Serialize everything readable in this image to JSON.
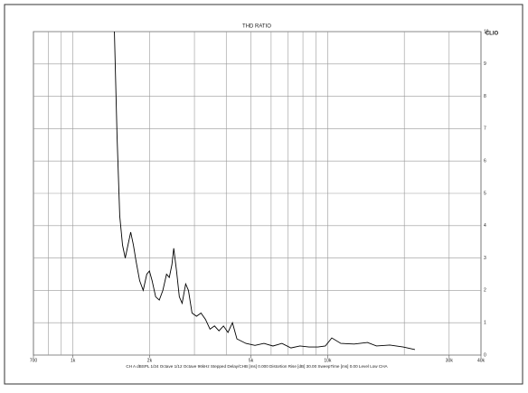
{
  "chart_data": {
    "type": "line",
    "title": "THD RATIO",
    "logo": "CLIO",
    "caption": "CH A   dBSPL   1/24 Octave   1/12 Octave   96kHz   Stepped   Delay/CHB [ms] 0.000   Distortion Rise [dB] 30.00   SweepTime [ms] 0.00   Level Low CHA",
    "x_log": true,
    "grid": true,
    "xlim": [
      700,
      40000
    ],
    "xticks": [
      700,
      {
        "value": 1000,
        "label": "1k"
      },
      {
        "value": 2000,
        "label": "2k"
      },
      {
        "value": 5000,
        "label": "5k"
      },
      {
        "value": 10000,
        "label": "10k"
      },
      {
        "value": 30000,
        "label": "30k"
      },
      {
        "value": 40000,
        "label": "40k"
      }
    ],
    "xgrid": [
      800,
      900,
      1000,
      2000,
      3000,
      4000,
      5000,
      6000,
      7000,
      8000,
      9000,
      10000,
      20000,
      30000
    ],
    "ylim": [
      0,
      10
    ],
    "yticks": [
      0,
      1,
      2,
      3,
      4,
      5,
      6,
      7,
      8,
      9,
      10
    ],
    "series": [
      {
        "name": "THD",
        "color": "#000000",
        "x": [
          1455,
          1490,
          1527,
          1566,
          1605,
          1645,
          1686,
          1728,
          1770,
          1828,
          1888,
          1950,
          1997,
          2046,
          2113,
          2183,
          2255,
          2331,
          2390,
          2448,
          2488,
          2552,
          2617,
          2684,
          2771,
          2842,
          2935,
          3057,
          3183,
          3316,
          3453,
          3596,
          3745,
          3900,
          4062,
          4230,
          4405,
          4779,
          5184,
          5623,
          6100,
          6617,
          7178,
          7786,
          8446,
          9162,
          9796,
          10385,
          11265,
          12709,
          14337,
          15552,
          17545,
          19794,
          22020
        ],
        "values": [
          10,
          6.8,
          4.3,
          3.4,
          3.0,
          3.4,
          3.8,
          3.4,
          2.9,
          2.3,
          2.0,
          2.5,
          2.6,
          2.3,
          1.8,
          1.7,
          2.0,
          2.5,
          2.4,
          2.8,
          3.3,
          2.6,
          1.8,
          1.6,
          2.2,
          2.0,
          1.3,
          1.2,
          1.3,
          1.1,
          0.8,
          0.9,
          0.75,
          0.9,
          0.7,
          1.0,
          0.5,
          0.36,
          0.3,
          0.36,
          0.28,
          0.36,
          0.22,
          0.28,
          0.25,
          0.25,
          0.28,
          0.53,
          0.36,
          0.34,
          0.39,
          0.28,
          0.31,
          0.25,
          0.17
        ]
      }
    ]
  }
}
